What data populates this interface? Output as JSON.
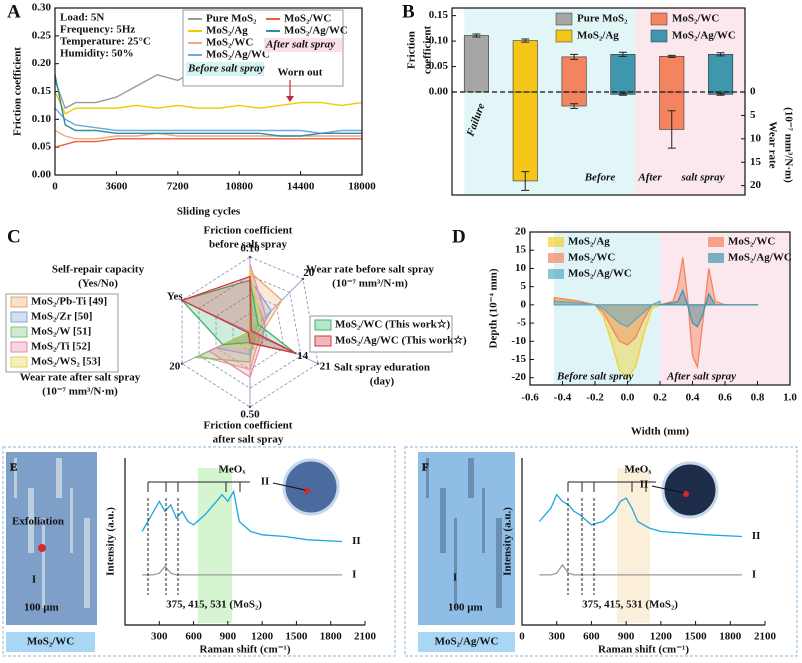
{
  "chart_data": [
    {
      "type": "line",
      "panel": "A",
      "xlabel": "Sliding cycles",
      "ylabel": "Friction coefficient",
      "notes": [
        "Load: 5N",
        "Frequency: 5Hz",
        "Temperature: 25°C",
        "Humidity: 50%"
      ],
      "groups": [
        "Before salt spray",
        "After salt spray"
      ],
      "annotation": "Worn out",
      "x": [
        0,
        600,
        1200,
        2400,
        3600,
        4800,
        6000,
        7200,
        8400,
        9600,
        10800,
        12000,
        13200,
        14400,
        15600,
        16800,
        18000
      ],
      "xlim": [
        0,
        18000
      ],
      "xticks": [
        0,
        3600,
        7200,
        10800,
        14400,
        18000
      ],
      "ylim": [
        0,
        0.3
      ],
      "yticks": [
        {
          "value": 0,
          "label": "0.00"
        },
        0.05,
        {
          "value": 0.1,
          "label": "0.10"
        },
        0.15,
        {
          "value": 0.2,
          "label": "0.20"
        },
        0.25,
        {
          "value": 0.3,
          "label": "0.30"
        }
      ],
      "series": [
        {
          "name": "Pure MoS₂",
          "group": 0,
          "color": "#9a9a9a",
          "values": [
            0.17,
            0.12,
            0.13,
            0.13,
            0.14,
            0.16,
            0.18,
            0.17,
            0.19,
            0.18,
            0.2,
            0.17,
            0.16,
            null,
            null,
            null,
            null
          ]
        },
        {
          "name": "MoS₂/Ag",
          "group": 0,
          "color": "#eccc00",
          "values": [
            0.15,
            0.11,
            0.12,
            0.12,
            0.12,
            0.125,
            0.12,
            0.125,
            0.12,
            0.12,
            0.125,
            0.12,
            0.125,
            0.13,
            0.13,
            0.125,
            0.13
          ]
        },
        {
          "name": "MoS₂/WC",
          "group": 0,
          "color": "#f4a582",
          "values": [
            0.08,
            0.07,
            0.065,
            0.065,
            0.07,
            0.07,
            0.075,
            0.07,
            0.07,
            0.07,
            0.07,
            0.07,
            0.07,
            0.07,
            0.07,
            0.07,
            0.07
          ]
        },
        {
          "name": "MoS₂/Ag/WC",
          "group": 0,
          "color": "#6fa8dc",
          "values": [
            0.12,
            0.1,
            0.09,
            0.085,
            0.08,
            0.08,
            0.08,
            0.08,
            0.08,
            0.08,
            0.08,
            0.08,
            0.08,
            0.08,
            0.075,
            0.08,
            0.08
          ]
        },
        {
          "name": "MoS₂/WC",
          "group": 1,
          "color": "#e8603c",
          "values": [
            0.05,
            0.055,
            0.06,
            0.06,
            0.065,
            0.065,
            0.065,
            0.065,
            0.065,
            0.065,
            0.065,
            0.065,
            0.065,
            0.065,
            0.065,
            0.065,
            0.065
          ]
        },
        {
          "name": "MoS₂/Ag/WC",
          "group": 1,
          "color": "#2f8f9d",
          "values": [
            0.18,
            0.09,
            0.08,
            0.08,
            0.075,
            0.075,
            0.075,
            0.075,
            0.075,
            0.075,
            0.075,
            0.075,
            0.07,
            0.07,
            0.075,
            0.075,
            0.075
          ]
        }
      ]
    },
    {
      "type": "bar",
      "panel": "B",
      "ylabel": [
        "Friction",
        "coefficient"
      ],
      "y2label": [
        "Wear rate",
        "(10⁻⁷ mm³/N·m)"
      ],
      "categories": [
        null,
        null,
        null,
        null,
        null,
        null
      ],
      "legend": [
        {
          "name": "Pure MoS₂",
          "color": "#a6a6a6"
        },
        {
          "name": "MoS₂/WC",
          "color": "#f4845f"
        },
        {
          "name": "MoS₂/Ag",
          "color": "#f5c518"
        },
        {
          "name": "MoS₂/Ag/WC",
          "color": "#3f97ad"
        }
      ],
      "bar_colors": [
        "#a6a6a6",
        "#f5c518",
        "#f4845f",
        "#3f97ad",
        "#f4845f",
        "#3f97ad"
      ],
      "ylim": [
        0,
        0.165
      ],
      "yticks": [
        {
          "value": 0,
          "label": "0.00"
        },
        0.05,
        {
          "value": 0.1,
          "label": "0.10"
        },
        0.15
      ],
      "y2lim": [
        0,
        22
      ],
      "y2ticks": [
        0,
        5,
        10,
        15,
        20
      ],
      "series": [
        {
          "values": [
            0.111,
            0.101,
            0.069,
            0.074,
            0.07,
            0.074
          ],
          "errors": [
            0.003,
            0.003,
            0.005,
            0.004,
            0.002,
            0.003
          ]
        },
        {
          "axis": "y2",
          "values": [
            null,
            19,
            3,
            0.5,
            8,
            0.5
          ],
          "errors": [
            null,
            2,
            0.5,
            0.2,
            4,
            0.2
          ]
        }
      ],
      "failure_label": "Failure",
      "region_labels": [
        "Before",
        "After",
        "salt spray"
      ]
    },
    {
      "type": "radar",
      "panel": "C",
      "axes": [
        {
          "label": [
            "Friction coefficient",
            "before salt spray"
          ],
          "lim": [
            0,
            0.1
          ],
          "ticks": [
            {
              "value": 0.1,
              "label": "0.10"
            }
          ]
        },
        {
          "label": [
            "Wear rate before salt spray",
            "(10⁻⁷ mm³/N·m)"
          ],
          "lim": [
            0,
            20
          ],
          "ticks": [
            20
          ]
        },
        {
          "label": [
            "Salt spray eduration",
            "(day)"
          ],
          "lim": [
            0,
            21
          ],
          "ticks": [
            14,
            21
          ]
        },
        {
          "label": [
            "Friction coefficient",
            "after salt spray"
          ],
          "lim": [
            0,
            0.5
          ],
          "ticks": [
            {
              "value": 0.5,
              "label": "0.50"
            }
          ]
        },
        {
          "label": [
            "Wear rate after salt spray",
            "(10⁻⁷ mm³/N·m)"
          ],
          "lim": [
            0,
            20
          ],
          "ticks": [
            20
          ]
        },
        {
          "label": [
            "Self-repair capacity",
            "(Yes/No)"
          ],
          "lim": [
            0,
            1
          ],
          "ticks": [
            {
              "value": 1,
              "label": "Yes"
            }
          ]
        }
      ],
      "series": [
        {
          "name": "MoS₂/Pb-Ti [49]",
          "color": "#e8a86b",
          "values": [
            0.08,
            12,
            3,
            0.25,
            15,
            0
          ]
        },
        {
          "name": "MoS₂/Zr [50]",
          "color": "#7fa6d6",
          "values": [
            0.07,
            8,
            2,
            0.15,
            10,
            0
          ]
        },
        {
          "name": "MoS₂/W [51]",
          "color": "#7cc47c",
          "values": [
            0.06,
            5,
            1,
            0.2,
            16,
            0
          ]
        },
        {
          "name": "MoS₂/Ti [52]",
          "color": "#e68aa8",
          "values": [
            0.09,
            6,
            4,
            0.3,
            12,
            0
          ]
        },
        {
          "name": "MoS₂/WS₂ [53]",
          "color": "#e6d44a",
          "values": [
            0.085,
            4,
            2,
            0.1,
            8,
            0
          ]
        },
        {
          "name": "MoS₂/WC (This work☆)",
          "color": "#3cb371",
          "values": [
            0.069,
            3,
            14,
            0.07,
            8,
            1
          ]
        },
        {
          "name": "MoS₂/Ag/WC (This work☆)",
          "color": "#d6343e",
          "values": [
            0.074,
            0.5,
            14,
            0.074,
            0.5,
            1
          ]
        }
      ]
    },
    {
      "type": "area",
      "panel": "D",
      "xlabel": "Width (mm)",
      "ylabel": "Depth (10⁻⁴ mm)",
      "groups": [
        "Before salt spray",
        "After salt spray"
      ],
      "xlim": [
        -0.6,
        1
      ],
      "xticks": [
        -0.6,
        -0.4,
        -0.2,
        {
          "value": 0,
          "label": "0.0"
        },
        0.2,
        0.4,
        0.6,
        0.8,
        {
          "value": 1,
          "label": "1.0"
        }
      ],
      "ylim": [
        -22,
        20
      ],
      "yticks": [
        -20,
        -15,
        -10,
        -5,
        0,
        5,
        10,
        15,
        20
      ],
      "series": [
        {
          "name": "MoS₂/Ag",
          "group": 0,
          "color": "#f2d22e",
          "x": [
            -0.45,
            -0.3,
            -0.2,
            -0.15,
            -0.1,
            -0.05,
            0,
            0.05,
            0.1,
            0.15,
            0.2
          ],
          "values": [
            2,
            1,
            0,
            -3,
            -10,
            -18,
            -20,
            -17,
            -8,
            -1,
            0
          ]
        },
        {
          "name": "MoS₂/WC",
          "group": 0,
          "color": "#f4845f",
          "x": [
            -0.45,
            -0.3,
            -0.2,
            -0.15,
            -0.1,
            -0.05,
            0,
            0.05,
            0.1,
            0.15,
            0.2
          ],
          "values": [
            2,
            1,
            0,
            -2,
            -6,
            -10,
            -11,
            -9,
            -4,
            0,
            0
          ]
        },
        {
          "name": "MoS₂/Ag/WC",
          "group": 0,
          "color": "#5aa9c8",
          "x": [
            -0.45,
            -0.3,
            -0.2,
            -0.15,
            -0.1,
            -0.05,
            0,
            0.05,
            0.1,
            0.15,
            0.2
          ],
          "values": [
            1,
            0.5,
            0,
            -1,
            -3,
            -5,
            -6,
            -4,
            -2,
            0,
            1
          ]
        },
        {
          "name": "MoS₂/WC",
          "group": 1,
          "color": "#f4845f",
          "x": [
            0.2,
            0.28,
            0.31,
            0.34,
            0.37,
            0.4,
            0.43,
            0.46,
            0.5,
            0.54,
            0.6,
            0.7,
            0.8
          ],
          "values": [
            0,
            1,
            5,
            13,
            2,
            -14,
            -17,
            -6,
            10,
            1,
            0,
            0,
            0
          ]
        },
        {
          "name": "MoS₂/Ag/WC",
          "group": 1,
          "color": "#3f97ad",
          "x": [
            0.2,
            0.28,
            0.31,
            0.34,
            0.37,
            0.4,
            0.43,
            0.46,
            0.5,
            0.54,
            0.6,
            0.7,
            0.8
          ],
          "values": [
            0,
            0.5,
            1,
            4,
            0,
            -5,
            -6,
            -3,
            3,
            0,
            0,
            0,
            0
          ]
        }
      ]
    },
    {
      "type": "spectrum",
      "panel": "E",
      "sample": "MoS₂/WC",
      "xlabel": "Raman shift (cm⁻¹)",
      "ylabel": "Intensity (a.u.)",
      "image_labels": [
        "Exfoliation",
        "I",
        "100 μm"
      ],
      "peak_labels": [
        "MeOₓ",
        "375, 415, 531 (MoS₂)"
      ],
      "inset_label": "II",
      "xlim": [
        0,
        2100
      ],
      "xticks": [
        300,
        600,
        900,
        1200,
        1500,
        1800,
        2100
      ],
      "ylim": [
        0,
        1
      ],
      "x": [
        150,
        250,
        300,
        350,
        400,
        450,
        500,
        550,
        600,
        700,
        800,
        850,
        900,
        950,
        1000,
        1100,
        1200,
        1400,
        1600,
        1900
      ],
      "series": [
        {
          "name": "II",
          "color": "#1ea7e0",
          "values": [
            0.56,
            0.68,
            0.74,
            0.68,
            0.72,
            0.64,
            0.68,
            0.62,
            0.6,
            0.66,
            0.74,
            0.78,
            0.74,
            0.8,
            0.62,
            0.56,
            0.54,
            0.53,
            0.51,
            0.5
          ]
        },
        {
          "name": "I",
          "color": "#9a9a9a",
          "values": [
            0.3,
            0.3,
            0.31,
            0.35,
            0.31,
            0.3,
            0.3,
            0.3,
            0.3,
            0.3,
            0.3,
            0.3,
            0.3,
            0.3,
            0.3,
            0.3,
            0.3,
            0.3,
            0.3,
            0.3
          ]
        }
      ]
    },
    {
      "type": "spectrum",
      "panel": "F",
      "sample": "MoS₂/Ag/WC",
      "xlabel": "Raman shift (cm⁻¹)",
      "ylabel": "Intensity (a.u.)",
      "image_labels": [
        "I",
        "100 μm"
      ],
      "peak_labels": [
        "MeOₓ",
        "375, 415, 531 (MoS₂)"
      ],
      "inset_label": "II",
      "xlim": [
        0,
        2100
      ],
      "xticks": [
        0,
        300,
        600,
        900,
        1200,
        1500,
        1800,
        2100
      ],
      "ylim": [
        0,
        1
      ],
      "x": [
        150,
        250,
        300,
        350,
        400,
        450,
        500,
        550,
        600,
        700,
        800,
        850,
        900,
        950,
        1000,
        1100,
        1200,
        1400,
        1600,
        1900
      ],
      "series": [
        {
          "name": "II",
          "color": "#1ea7e0",
          "values": [
            0.62,
            0.7,
            0.78,
            0.74,
            0.72,
            0.68,
            0.66,
            0.63,
            0.6,
            0.62,
            0.68,
            0.74,
            0.76,
            0.7,
            0.62,
            0.58,
            0.56,
            0.55,
            0.54,
            0.53
          ]
        },
        {
          "name": "I",
          "color": "#9a9a9a",
          "values": [
            0.3,
            0.3,
            0.31,
            0.36,
            0.31,
            0.3,
            0.3,
            0.3,
            0.3,
            0.3,
            0.3,
            0.3,
            0.3,
            0.3,
            0.3,
            0.3,
            0.3,
            0.3,
            0.3,
            0.3
          ]
        }
      ]
    }
  ]
}
